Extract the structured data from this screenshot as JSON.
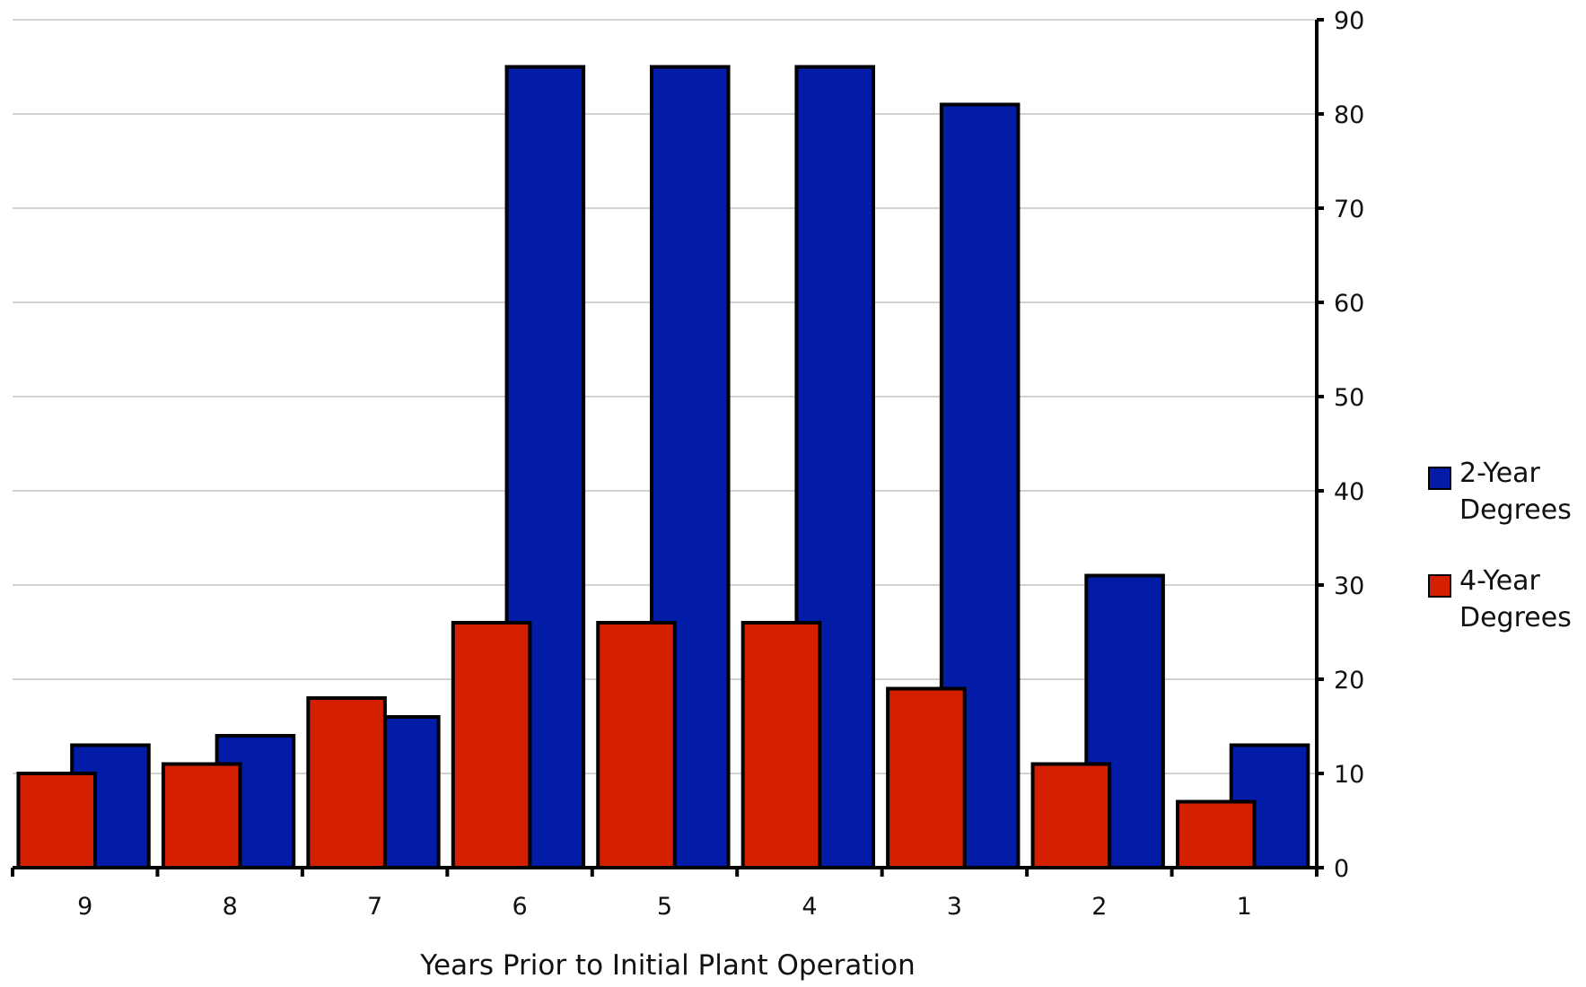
{
  "chart_data": {
    "type": "bar",
    "categories": [
      "9",
      "8",
      "7",
      "6",
      "5",
      "4",
      "3",
      "2",
      "1"
    ],
    "series": [
      {
        "name": "2-Year Degrees",
        "values": [
          13,
          14,
          16,
          85,
          85,
          85,
          81,
          31,
          13
        ],
        "color": "#021ca8"
      },
      {
        "name": "4-Year Degrees",
        "values": [
          10,
          11,
          18,
          26,
          26,
          26,
          19,
          11,
          7
        ],
        "color": "#d41f00"
      }
    ],
    "xlabel": "Years Prior to Initial Plant Operation",
    "ylabel": "",
    "ylim": [
      0,
      90
    ],
    "yticks": [
      "0",
      "10",
      "20",
      "30",
      "40",
      "50",
      "60",
      "70",
      "80",
      "90"
    ],
    "y_axis_side": "right",
    "grid": true,
    "legend": {
      "position": "right",
      "entries": [
        {
          "lines": [
            "2-Year",
            "Degrees"
          ],
          "color": "#021ca8"
        },
        {
          "lines": [
            "4-Year",
            "Degrees"
          ],
          "color": "#d41f00"
        }
      ]
    }
  }
}
